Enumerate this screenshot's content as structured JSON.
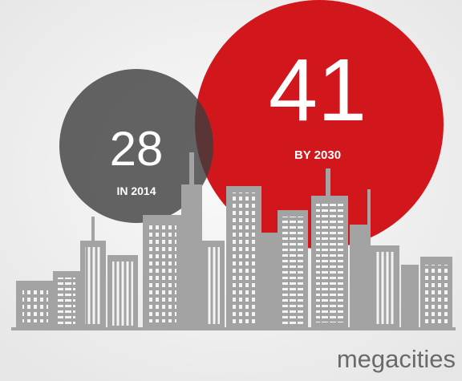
{
  "circles": [
    {
      "value": 28,
      "label": "IN 2014"
    },
    {
      "value": 41,
      "label": "BY 2030"
    }
  ],
  "caption": "megacities"
}
